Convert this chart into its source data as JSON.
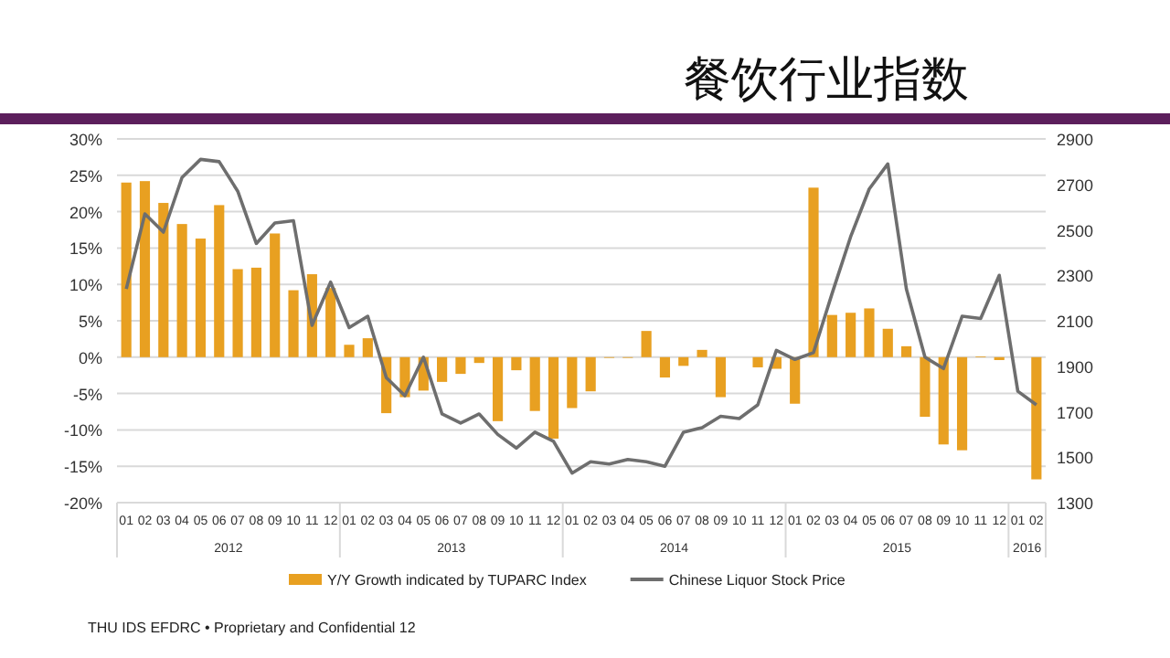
{
  "chart_data": {
    "type": "bar",
    "title": "餐饮行业指数",
    "categories": [
      "01",
      "02",
      "03",
      "04",
      "05",
      "06",
      "07",
      "08",
      "09",
      "10",
      "11",
      "12",
      "01",
      "02",
      "03",
      "04",
      "05",
      "06",
      "07",
      "08",
      "09",
      "10",
      "11",
      "12",
      "01",
      "02",
      "03",
      "04",
      "05",
      "06",
      "07",
      "08",
      "09",
      "10",
      "11",
      "12",
      "01",
      "02",
      "03",
      "04",
      "05",
      "06",
      "07",
      "08",
      "09",
      "10",
      "11",
      "12",
      "01",
      "02"
    ],
    "series": [
      {
        "name": "Y/Y Growth indicated by TUPARC Index",
        "color": "#e8a021",
        "values": [
          24,
          24.2,
          21.2,
          18.3,
          16.3,
          20.9,
          12.1,
          12.3,
          17,
          9.2,
          11.4,
          9.5,
          1.7,
          2.6,
          -7.7,
          -5.5,
          -4.6,
          -3.4,
          -2.3,
          -0.8,
          -8.8,
          -1.8,
          -7.4,
          -11.2,
          -7,
          -4.7,
          -0.1,
          -0.1,
          3.6,
          -2.8,
          -1.2,
          1,
          -5.5,
          0,
          -1.4,
          -1.6,
          -6.4,
          23.3,
          5.8,
          6.1,
          6.7,
          3.9,
          1.5,
          -8.2,
          -12,
          -12.8,
          0.1,
          -0.4,
          0,
          -16.8
        ]
      },
      {
        "name": "Chinese Liquor Stock Price",
        "type": "line",
        "axis": "y2",
        "color": "#6e6e6e",
        "values": [
          2240,
          2570,
          2490,
          2730,
          2810,
          2800,
          2670,
          2440,
          2530,
          2540,
          2080,
          2270,
          2070,
          2120,
          1850,
          1770,
          1940,
          1690,
          1650,
          1690,
          1600,
          1540,
          1610,
          1570,
          1430,
          1480,
          1470,
          1490,
          1480,
          1460,
          1610,
          1630,
          1680,
          1670,
          1730,
          1970,
          1930,
          1960,
          2220,
          2470,
          2680,
          2790,
          2240,
          1940,
          1890,
          2120,
          2110,
          2300,
          1790,
          1730
        ]
      }
    ],
    "ylim": [
      -20,
      30
    ],
    "yticks": [
      {
        "value": -20,
        "label": "-20%"
      },
      {
        "value": -15,
        "label": "-15%"
      },
      {
        "value": -10,
        "label": "-10%"
      },
      {
        "value": -5,
        "label": "-5%"
      },
      {
        "value": 0,
        "label": "0%"
      },
      {
        "value": 5,
        "label": "5%"
      },
      {
        "value": 10,
        "label": "10%"
      },
      {
        "value": 15,
        "label": "15%"
      },
      {
        "value": 20,
        "label": "20%"
      },
      {
        "value": 25,
        "label": "25%"
      },
      {
        "value": 30,
        "label": "30%"
      }
    ],
    "y2lim": [
      1300,
      2900
    ],
    "y2ticks": [
      1300,
      1500,
      1700,
      1900,
      2100,
      2300,
      2500,
      2700,
      2900
    ],
    "grid": "y",
    "legend": "bottom",
    "annotations": [
      "2012",
      "2013",
      "2014",
      "2015",
      "2016",
      "THU IDS EFDRC • Proprietary and Confidential  12"
    ]
  }
}
